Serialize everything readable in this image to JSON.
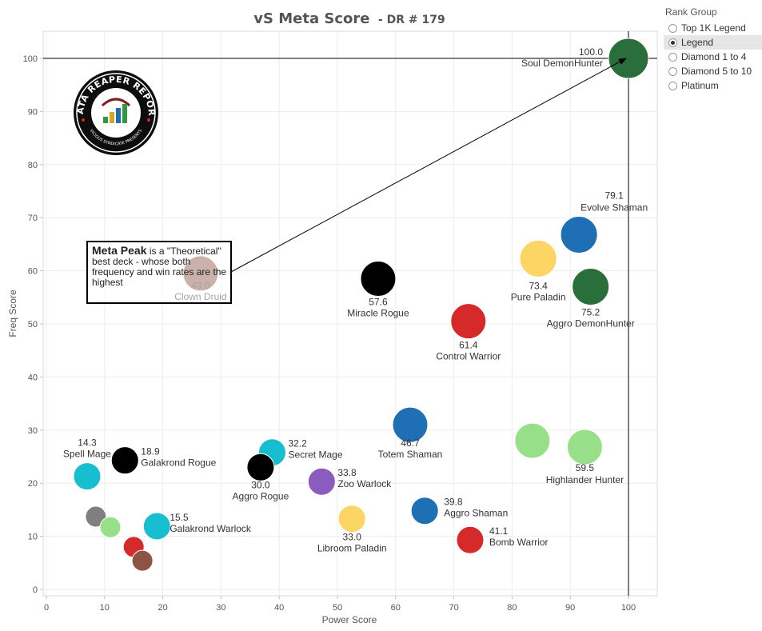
{
  "chart_data": {
    "type": "scatter",
    "title": "vS Meta Score",
    "subtitle": "- DR # 179",
    "xlabel": "Power Score",
    "ylabel": "Freq Score",
    "xlim": [
      0,
      105
    ],
    "ylim": [
      0,
      105
    ],
    "x_ticks": [
      0,
      10,
      20,
      30,
      40,
      50,
      60,
      70,
      80,
      90,
      100
    ],
    "y_ticks": [
      0,
      10,
      20,
      30,
      40,
      50,
      60,
      70,
      80,
      90,
      100
    ],
    "grid": true,
    "reference_lines": {
      "x": 100,
      "y": 100
    },
    "points": [
      {
        "x": 100.0,
        "y": 100.0,
        "color": "#2a6e3b",
        "value_label": "100.0",
        "name": "Soul DemonHunter"
      },
      {
        "x": 91.5,
        "y": 66.8,
        "color": "#1f6fb4",
        "value_label": "79.1",
        "name": "Evolve Shaman"
      },
      {
        "x": 84.5,
        "y": 62.3,
        "color": "#fcd565",
        "value_label": "73.4",
        "name": "Pure Paladin"
      },
      {
        "x": 93.5,
        "y": 57.0,
        "color": "#2a6e3b",
        "value_label": "75.2",
        "name": "Aggro DemonHunter"
      },
      {
        "x": 57.0,
        "y": 58.5,
        "color": "#000000",
        "value_label": "57.6",
        "name": "Miracle Rogue"
      },
      {
        "x": 72.5,
        "y": 50.5,
        "color": "#d62a2a",
        "value_label": "61.4",
        "name": "Control Warrior"
      },
      {
        "x": 26.5,
        "y": 59.5,
        "color": "#8b5443",
        "value_label": "43.0",
        "name": "Clown Druid"
      },
      {
        "x": 62.5,
        "y": 31.0,
        "color": "#1f6fb4",
        "value_label": "46.7",
        "name": "Totem Shaman"
      },
      {
        "x": 83.5,
        "y": 28.0,
        "color": "#98df8a",
        "value_label": "",
        "name": ""
      },
      {
        "x": 92.5,
        "y": 26.8,
        "color": "#98df8a",
        "value_label": "59.5",
        "name": "Highlander Hunter"
      },
      {
        "x": 7.0,
        "y": 21.3,
        "color": "#17becf",
        "value_label": "14.3",
        "name": "Spell Mage"
      },
      {
        "x": 13.5,
        "y": 24.3,
        "color": "#000000",
        "value_label": "18.9",
        "name": "Galakrond Rogue"
      },
      {
        "x": 38.8,
        "y": 25.8,
        "color": "#17becf",
        "value_label": "32.2",
        "name": "Secret Mage"
      },
      {
        "x": 36.8,
        "y": 23.0,
        "color": "#000000",
        "value_label": "30.0",
        "name": "Aggro Rogue"
      },
      {
        "x": 47.3,
        "y": 20.3,
        "color": "#8a5cc0",
        "value_label": "33.8",
        "name": "Zoo Warlock"
      },
      {
        "x": 65.0,
        "y": 14.8,
        "color": "#1f6fb4",
        "value_label": "39.8",
        "name": "Aggro Shaman"
      },
      {
        "x": 52.5,
        "y": 13.3,
        "color": "#fcd565",
        "value_label": "33.0",
        "name": "Libroom Paladin"
      },
      {
        "x": 72.8,
        "y": 9.3,
        "color": "#d62a2a",
        "value_label": "41.1",
        "name": "Bomb Warrior"
      },
      {
        "x": 19.0,
        "y": 11.9,
        "color": "#17becf",
        "value_label": "15.5",
        "name": "Galakrond Warlock"
      },
      {
        "x": 8.5,
        "y": 13.7,
        "color": "#7f7f7f",
        "value_label": "",
        "name": ""
      },
      {
        "x": 11.0,
        "y": 11.7,
        "color": "#98df8a",
        "value_label": "",
        "name": ""
      },
      {
        "x": 15.0,
        "y": 8.0,
        "color": "#d62a2a",
        "value_label": "",
        "name": ""
      },
      {
        "x": 16.5,
        "y": 5.4,
        "color": "#8b5443",
        "value_label": "",
        "name": ""
      }
    ],
    "annotation": {
      "bold": "Meta Peak",
      "text": " is a \"Theoretical\" best deck - whose both frequency and win rates are the highest"
    },
    "logo": {
      "text_top": "DATA REAPER REPORT",
      "text_bottom": "VICIOUS SYNDICATE PRESENTS"
    }
  },
  "legend": {
    "title": "Rank Group",
    "items": [
      {
        "label": "Top 1K Legend",
        "selected": false
      },
      {
        "label": "Legend",
        "selected": true
      },
      {
        "label": "Diamond 1 to 4",
        "selected": false
      },
      {
        "label": "Diamond 5 to 10",
        "selected": false
      },
      {
        "label": "Platinum",
        "selected": false
      }
    ]
  }
}
